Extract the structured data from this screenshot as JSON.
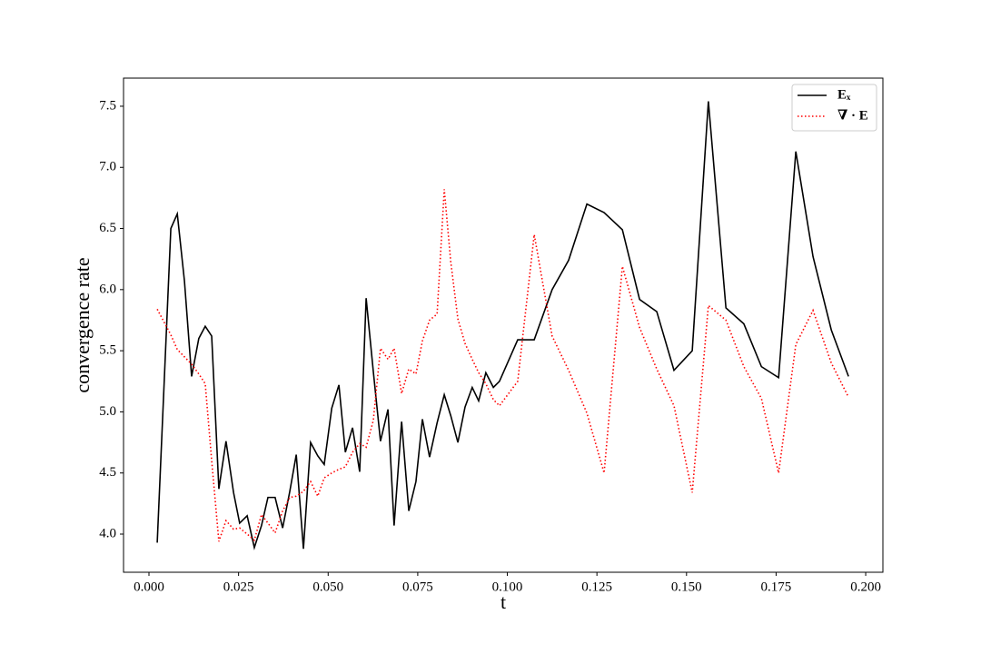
{
  "chart_data": {
    "type": "line",
    "xlabel": "t",
    "ylabel": "convergence rate",
    "x": [
      0.0023,
      0.0061,
      0.0079,
      0.0099,
      0.0119,
      0.0139,
      0.0157,
      0.0175,
      0.0195,
      0.0215,
      0.0236,
      0.0253,
      0.0274,
      0.0294,
      0.0314,
      0.0332,
      0.0352,
      0.0373,
      0.0393,
      0.0411,
      0.0431,
      0.0451,
      0.0471,
      0.0489,
      0.051,
      0.053,
      0.0548,
      0.0568,
      0.0588,
      0.0606,
      0.0626,
      0.0646,
      0.0667,
      0.0684,
      0.0705,
      0.0725,
      0.0745,
      0.0763,
      0.0783,
      0.0804,
      0.0824,
      0.0842,
      0.0862,
      0.0882,
      0.0902,
      0.092,
      0.094,
      0.0961,
      0.0978,
      0.1029,
      0.1075,
      0.1125,
      0.1171,
      0.1222,
      0.127,
      0.1321,
      0.1369,
      0.1417,
      0.1465,
      0.1516,
      0.1561,
      0.161,
      0.166,
      0.1709,
      0.1757,
      0.1805,
      0.1853,
      0.1904,
      0.1952
    ],
    "series": [
      {
        "name": "Eₓ",
        "color": "#000000",
        "style": "solid",
        "values": [
          3.93,
          6.5,
          6.62,
          6.07,
          5.29,
          5.6,
          5.7,
          5.62,
          4.37,
          4.76,
          4.34,
          4.09,
          4.15,
          3.89,
          4.07,
          4.3,
          4.3,
          4.05,
          4.35,
          4.65,
          3.88,
          4.75,
          4.64,
          4.57,
          5.03,
          5.22,
          4.67,
          4.87,
          4.51,
          5.93,
          5.33,
          4.76,
          5.02,
          4.07,
          4.92,
          4.19,
          4.43,
          4.94,
          4.63,
          4.91,
          5.14,
          4.97,
          4.75,
          5.04,
          5.2,
          5.09,
          5.32,
          5.2,
          5.25,
          5.59,
          5.59,
          6.0,
          6.24,
          6.7,
          6.63,
          6.49,
          5.92,
          5.82,
          5.34,
          5.5,
          7.54,
          5.85,
          5.72,
          5.37,
          5.28,
          7.13,
          6.27,
          5.67,
          5.29
        ]
      },
      {
        "name": "∇ · E",
        "color": "#ff0000",
        "style": "dotted",
        "values": [
          5.84,
          5.63,
          5.51,
          5.45,
          5.39,
          5.31,
          5.23,
          4.6,
          3.94,
          4.11,
          4.04,
          4.05,
          4.0,
          3.95,
          4.16,
          4.09,
          4.01,
          4.19,
          4.3,
          4.31,
          4.35,
          4.43,
          4.31,
          4.46,
          4.5,
          4.53,
          4.55,
          4.67,
          4.74,
          4.71,
          4.93,
          5.52,
          5.43,
          5.52,
          5.15,
          5.35,
          5.31,
          5.58,
          5.75,
          5.8,
          6.82,
          6.23,
          5.76,
          5.56,
          5.43,
          5.32,
          5.23,
          5.1,
          5.05,
          5.25,
          6.45,
          5.62,
          5.34,
          4.99,
          4.5,
          6.19,
          5.69,
          5.35,
          5.05,
          4.34,
          5.87,
          5.75,
          5.37,
          5.11,
          4.5,
          5.55,
          5.83,
          5.4,
          5.12
        ]
      }
    ],
    "xlim": [
      -0.0071,
      0.2048
    ],
    "ylim": [
      3.688,
      7.73
    ],
    "xticks": [
      {
        "value": 0,
        "label": "0.000"
      },
      0.025,
      {
        "value": 0.05,
        "label": "0.050"
      },
      0.075,
      {
        "value": 0.1,
        "label": "0.100"
      },
      0.125,
      {
        "value": 0.15,
        "label": "0.150"
      },
      0.175,
      {
        "value": 0.2,
        "label": "0.200"
      }
    ],
    "yticks": [
      {
        "value": 4,
        "label": "4.0"
      },
      4.5,
      {
        "value": 5,
        "label": "5.0"
      },
      5.5,
      {
        "value": 6,
        "label": "6.0"
      },
      6.5,
      {
        "value": 7,
        "label": "7.0"
      },
      7.5
    ],
    "legend": "upper right",
    "grid": false
  }
}
